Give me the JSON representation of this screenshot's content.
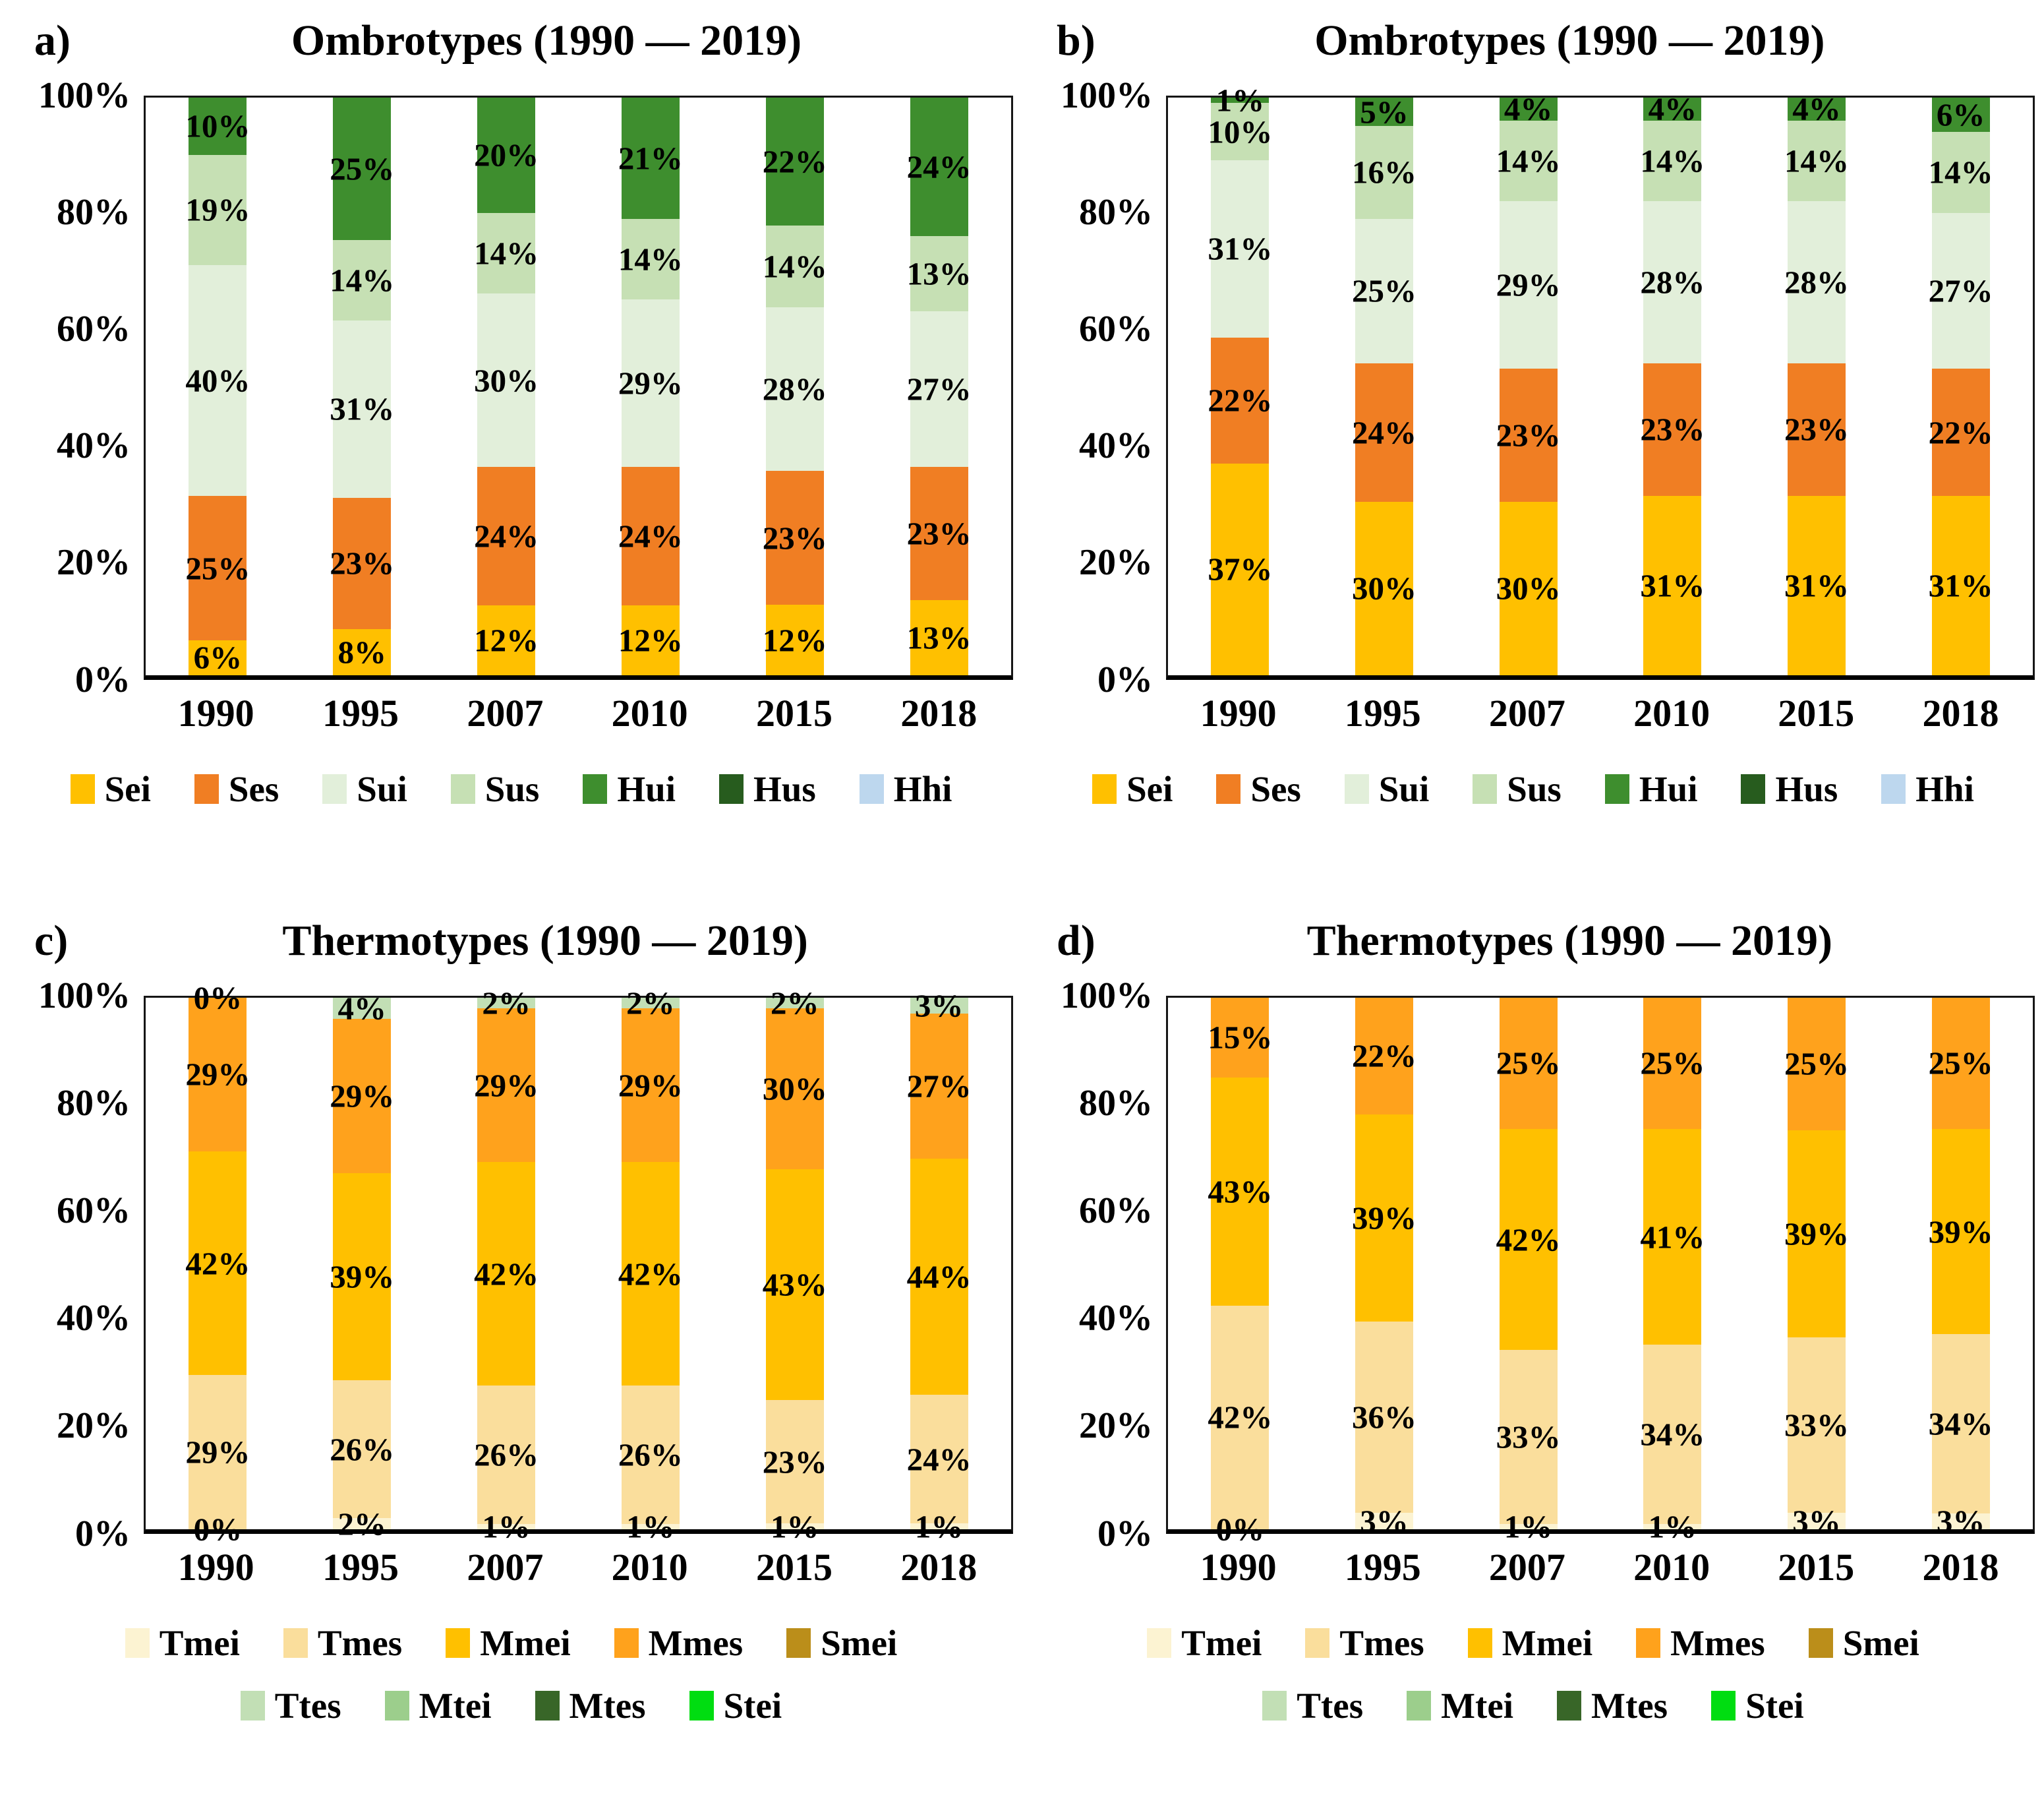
{
  "figure": {
    "background": "#ffffff"
  },
  "chart_data": [
    {
      "id": "a",
      "panel_letter": "a)",
      "type": "stacked-bar-100",
      "title": "Ombrotypes (1990 — 2019)",
      "categories": [
        "1990",
        "1995",
        "2007",
        "2010",
        "2015",
        "2018"
      ],
      "ylim": [
        0,
        100
      ],
      "grid": false,
      "legend_position": "bottom",
      "yticks": [
        100,
        80,
        60,
        40,
        20,
        0
      ],
      "ytick_labels": [
        "100%",
        "80%",
        "60%",
        "40%",
        "20%",
        "0%"
      ],
      "series": [
        {
          "name": "Sei",
          "color": "#FFC000",
          "values": [
            6,
            8,
            12,
            12,
            12,
            13
          ],
          "labels": [
            "6%",
            "8%",
            "12%",
            "12%",
            "12%",
            "13%"
          ]
        },
        {
          "name": "Ses",
          "color": "#F07E23",
          "values": [
            25,
            23,
            24,
            24,
            23,
            23
          ],
          "labels": [
            "25%",
            "23%",
            "24%",
            "24%",
            "23%",
            "23%"
          ]
        },
        {
          "name": "Sui",
          "color": "#E2EFDA",
          "values": [
            40,
            31,
            30,
            29,
            28,
            27
          ],
          "labels": [
            "40%",
            "31%",
            "30%",
            "29%",
            "28%",
            "27%"
          ]
        },
        {
          "name": "Sus",
          "color": "#C6E0B4",
          "values": [
            19,
            14,
            14,
            14,
            14,
            13
          ],
          "labels": [
            "19%",
            "14%",
            "14%",
            "14%",
            "14%",
            "13%"
          ]
        },
        {
          "name": "Hui",
          "color": "#3E8E2E",
          "values": [
            10,
            25,
            20,
            21,
            22,
            24
          ],
          "labels": [
            "10%",
            "25%",
            "20%",
            "21%",
            "22%",
            "24%"
          ]
        }
      ],
      "legend_rows": [
        [
          {
            "label": "Sei",
            "color": "#FFC000"
          },
          {
            "label": "Ses",
            "color": "#F07E23"
          },
          {
            "label": "Sui",
            "color": "#E2EFDA"
          },
          {
            "label": "Sus",
            "color": "#C6E0B4"
          },
          {
            "label": "Hui",
            "color": "#3E8E2E"
          },
          {
            "label": "Hus",
            "color": "#275C1E"
          },
          {
            "label": "Hhi",
            "color": "#BDD7EE"
          }
        ]
      ]
    },
    {
      "id": "b",
      "panel_letter": "b)",
      "type": "stacked-bar-100",
      "title": "Ombrotypes (1990 — 2019)",
      "categories": [
        "1990",
        "1995",
        "2007",
        "2010",
        "2015",
        "2018"
      ],
      "ylim": [
        0,
        100
      ],
      "grid": false,
      "legend_position": "bottom",
      "yticks": [
        100,
        80,
        60,
        40,
        20,
        0
      ],
      "ytick_labels": [
        "100%",
        "80%",
        "60%",
        "40%",
        "20%",
        "0%"
      ],
      "series": [
        {
          "name": "Sei",
          "color": "#FFC000",
          "values": [
            37,
            30,
            30,
            31,
            31,
            31
          ],
          "labels": [
            "37%",
            "30%",
            "30%",
            "31%",
            "31%",
            "31%"
          ]
        },
        {
          "name": "Ses",
          "color": "#F07E23",
          "values": [
            22,
            24,
            23,
            23,
            23,
            22
          ],
          "labels": [
            "22%",
            "24%",
            "23%",
            "23%",
            "23%",
            "22%"
          ]
        },
        {
          "name": "Sui",
          "color": "#E2EFDA",
          "values": [
            31,
            25,
            29,
            28,
            28,
            27
          ],
          "labels": [
            "31%",
            "25%",
            "29%",
            "28%",
            "28%",
            "27%"
          ]
        },
        {
          "name": "Sus",
          "color": "#C6E0B4",
          "values": [
            10,
            16,
            14,
            14,
            14,
            14
          ],
          "labels": [
            "10%",
            "16%",
            "14%",
            "14%",
            "14%",
            "14%"
          ]
        },
        {
          "name": "Hui",
          "color": "#3E8E2E",
          "values": [
            1,
            5,
            4,
            4,
            4,
            6
          ],
          "labels": [
            "1%",
            "5%",
            "4%",
            "4%",
            "4%",
            "6%"
          ]
        }
      ],
      "legend_rows": [
        [
          {
            "label": "Sei",
            "color": "#FFC000"
          },
          {
            "label": "Ses",
            "color": "#F07E23"
          },
          {
            "label": "Sui",
            "color": "#E2EFDA"
          },
          {
            "label": "Sus",
            "color": "#C6E0B4"
          },
          {
            "label": "Hui",
            "color": "#3E8E2E"
          },
          {
            "label": "Hus",
            "color": "#275C1E"
          },
          {
            "label": "Hhi",
            "color": "#BDD7EE"
          }
        ]
      ]
    },
    {
      "id": "c",
      "panel_letter": "c)",
      "type": "stacked-bar-100",
      "title": "Thermotypes (1990 — 2019)",
      "categories": [
        "1990",
        "1995",
        "2007",
        "2010",
        "2015",
        "2018"
      ],
      "ylim": [
        0,
        100
      ],
      "grid": false,
      "legend_position": "bottom",
      "yticks": [
        100,
        80,
        60,
        40,
        20,
        0
      ],
      "ytick_labels": [
        "100%",
        "80%",
        "60%",
        "40%",
        "20%",
        "0%"
      ],
      "series": [
        {
          "name": "Tmei",
          "color": "#FCF3D2",
          "values": [
            0,
            2,
            1,
            1,
            1,
            1
          ],
          "labels": [
            "0%",
            "2%",
            "1%",
            "1%",
            "1%",
            "1%"
          ]
        },
        {
          "name": "Tmes",
          "color": "#FADE9C",
          "values": [
            29,
            26,
            26,
            26,
            23,
            24
          ],
          "labels": [
            "29%",
            "26%",
            "26%",
            "26%",
            "23%",
            "24%"
          ]
        },
        {
          "name": "Mmei",
          "color": "#FFC000",
          "values": [
            42,
            39,
            42,
            42,
            43,
            44
          ],
          "labels": [
            "42%",
            "39%",
            "42%",
            "42%",
            "43%",
            "44%"
          ]
        },
        {
          "name": "Mmes",
          "color": "#FFA21C",
          "values": [
            29,
            29,
            29,
            29,
            30,
            27
          ],
          "labels": [
            "29%",
            "29%",
            "29%",
            "29%",
            "30%",
            "27%"
          ]
        },
        {
          "name": "Ttes",
          "color": "#C2DFB5",
          "values": [
            0,
            4,
            2,
            2,
            2,
            3
          ],
          "labels": [
            "0%",
            "4%",
            "2%",
            "2%",
            "2%",
            "3%"
          ]
        }
      ],
      "legend_rows": [
        [
          {
            "label": "Tmei",
            "color": "#FCF3D2"
          },
          {
            "label": "Tmes",
            "color": "#FADE9C"
          },
          {
            "label": "Mmei",
            "color": "#FFC000"
          },
          {
            "label": "Mmes",
            "color": "#FFA21C"
          },
          {
            "label": "Smei",
            "color": "#BB8E1A"
          }
        ],
        [
          {
            "label": "Ttes",
            "color": "#C2DFB5"
          },
          {
            "label": "Mtei",
            "color": "#9CCE8C"
          },
          {
            "label": "Mtes",
            "color": "#386628"
          },
          {
            "label": "Stei",
            "color": "#00DD11"
          }
        ]
      ]
    },
    {
      "id": "d",
      "panel_letter": "d)",
      "type": "stacked-bar-100",
      "title": "Thermotypes (1990 — 2019)",
      "categories": [
        "1990",
        "1995",
        "2007",
        "2010",
        "2015",
        "2018"
      ],
      "ylim": [
        0,
        100
      ],
      "grid": false,
      "legend_position": "bottom",
      "yticks": [
        100,
        80,
        60,
        40,
        20,
        0
      ],
      "ytick_labels": [
        "100%",
        "80%",
        "60%",
        "40%",
        "20%",
        "0%"
      ],
      "series": [
        {
          "name": "Tmei",
          "color": "#FCF3D2",
          "values": [
            0,
            3,
            1,
            1,
            3,
            3
          ],
          "labels": [
            "0%",
            "3%",
            "1%",
            "1%",
            "3%",
            "3%"
          ]
        },
        {
          "name": "Tmes",
          "color": "#FADE9C",
          "values": [
            42,
            36,
            33,
            34,
            33,
            34
          ],
          "labels": [
            "42%",
            "36%",
            "33%",
            "34%",
            "33%",
            "34%"
          ]
        },
        {
          "name": "Mmei",
          "color": "#FFC000",
          "values": [
            43,
            39,
            42,
            41,
            39,
            39
          ],
          "labels": [
            "43%",
            "39%",
            "42%",
            "41%",
            "39%",
            "39%"
          ]
        },
        {
          "name": "Mmes",
          "color": "#FFA21C",
          "values": [
            15,
            22,
            25,
            25,
            25,
            25
          ],
          "labels": [
            "15%",
            "22%",
            "25%",
            "25%",
            "25%",
            "25%"
          ]
        }
      ],
      "legend_rows": [
        [
          {
            "label": "Tmei",
            "color": "#FCF3D2"
          },
          {
            "label": "Tmes",
            "color": "#FADE9C"
          },
          {
            "label": "Mmei",
            "color": "#FFC000"
          },
          {
            "label": "Mmes",
            "color": "#FFA21C"
          },
          {
            "label": "Smei",
            "color": "#BB8E1A"
          }
        ],
        [
          {
            "label": "Ttes",
            "color": "#C2DFB5"
          },
          {
            "label": "Mtei",
            "color": "#9CCE8C"
          },
          {
            "label": "Mtes",
            "color": "#386628"
          },
          {
            "label": "Stei",
            "color": "#00DD11"
          }
        ]
      ]
    }
  ]
}
